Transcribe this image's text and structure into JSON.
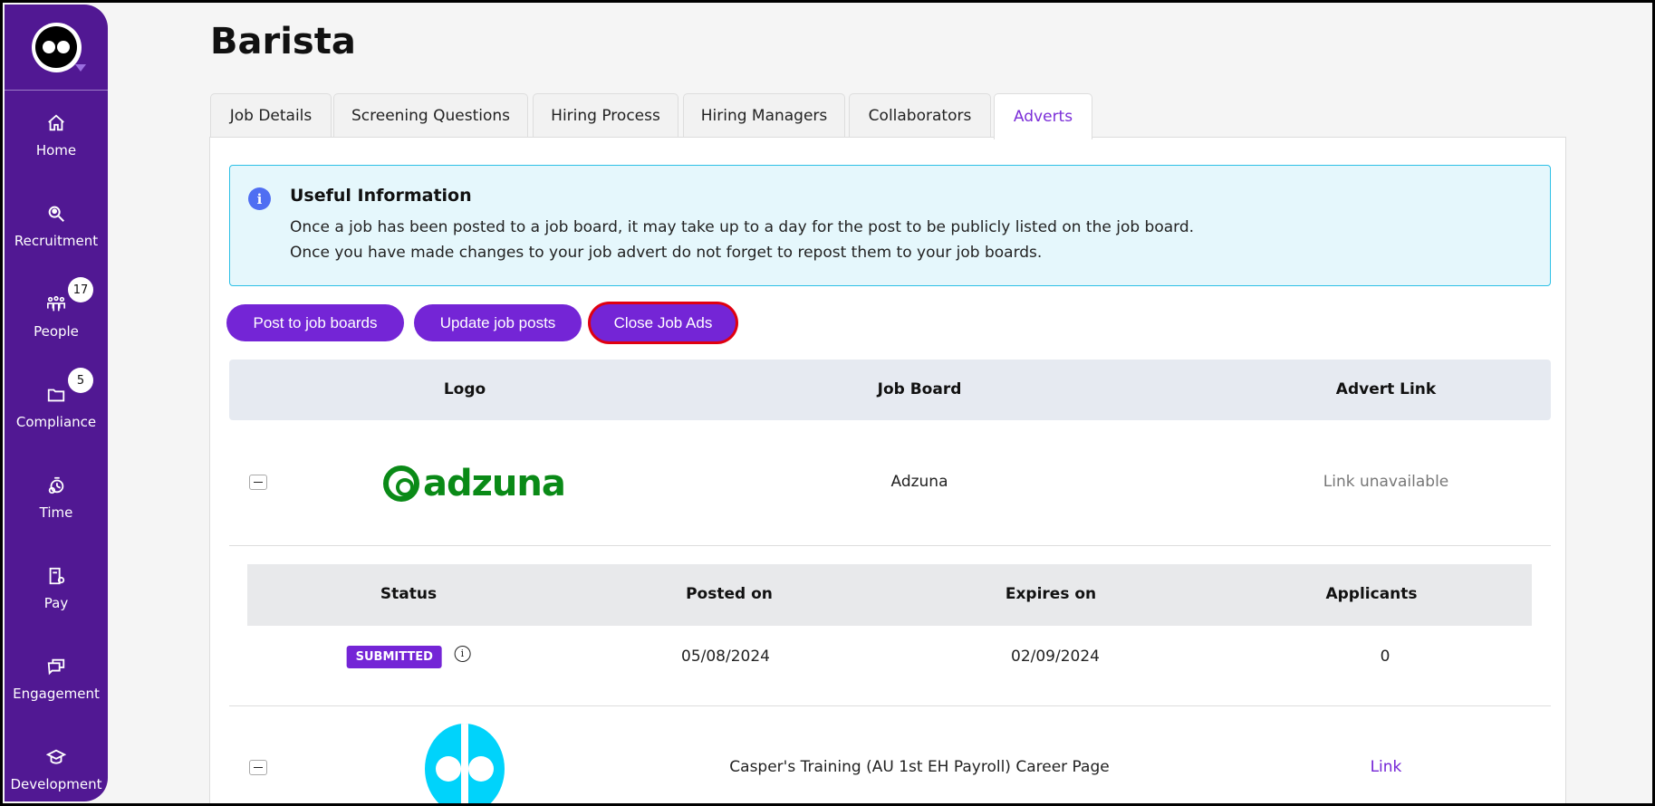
{
  "page": {
    "title": "Barista"
  },
  "sidebar": {
    "items": [
      {
        "label": "Home",
        "icon": "home-icon"
      },
      {
        "label": "Recruitment",
        "icon": "search-user-icon"
      },
      {
        "label": "People",
        "icon": "people-icon",
        "badge": "17"
      },
      {
        "label": "Compliance",
        "icon": "folder-icon",
        "badge": "5"
      },
      {
        "label": "Time",
        "icon": "stopwatch-icon"
      },
      {
        "label": "Pay",
        "icon": "payslip-icon"
      },
      {
        "label": "Engagement",
        "icon": "chat-icon"
      },
      {
        "label": "Development",
        "icon": "graduation-cap-icon"
      }
    ]
  },
  "tabs": [
    {
      "label": "Job Details"
    },
    {
      "label": "Screening Questions"
    },
    {
      "label": "Hiring Process"
    },
    {
      "label": "Hiring Managers"
    },
    {
      "label": "Collaborators"
    },
    {
      "label": "Adverts",
      "active": true
    }
  ],
  "info": {
    "heading": "Useful Information",
    "line1": "Once a job has been posted to a job board, it may take up to a day for the post to be publicly listed on the job board.",
    "line2": "Once you have made changes to your job advert do not forget to repost them to your job boards."
  },
  "actions": {
    "post": "Post to job boards",
    "update": "Update job posts",
    "close": "Close Job Ads"
  },
  "table": {
    "headers": [
      "Logo",
      "Job Board",
      "Advert Link"
    ],
    "rows": [
      {
        "logo": "adzuna",
        "board": "Adzuna",
        "link": "Link unavailable",
        "details": {
          "headers": [
            "Status",
            "Posted on",
            "Expires on",
            "Applicants"
          ],
          "status": "SUBMITTED",
          "posted": "05/08/2024",
          "expires": "02/09/2024",
          "applicants": "0"
        }
      },
      {
        "logo": "casper",
        "board": "Casper's Training (AU 1st EH Payroll) Career Page",
        "link": "Link"
      }
    ]
  },
  "colors": {
    "sidebar": "#511893",
    "accent": "#7425d6",
    "info_border": "#2cc0e6",
    "highlight": "#e00010"
  }
}
